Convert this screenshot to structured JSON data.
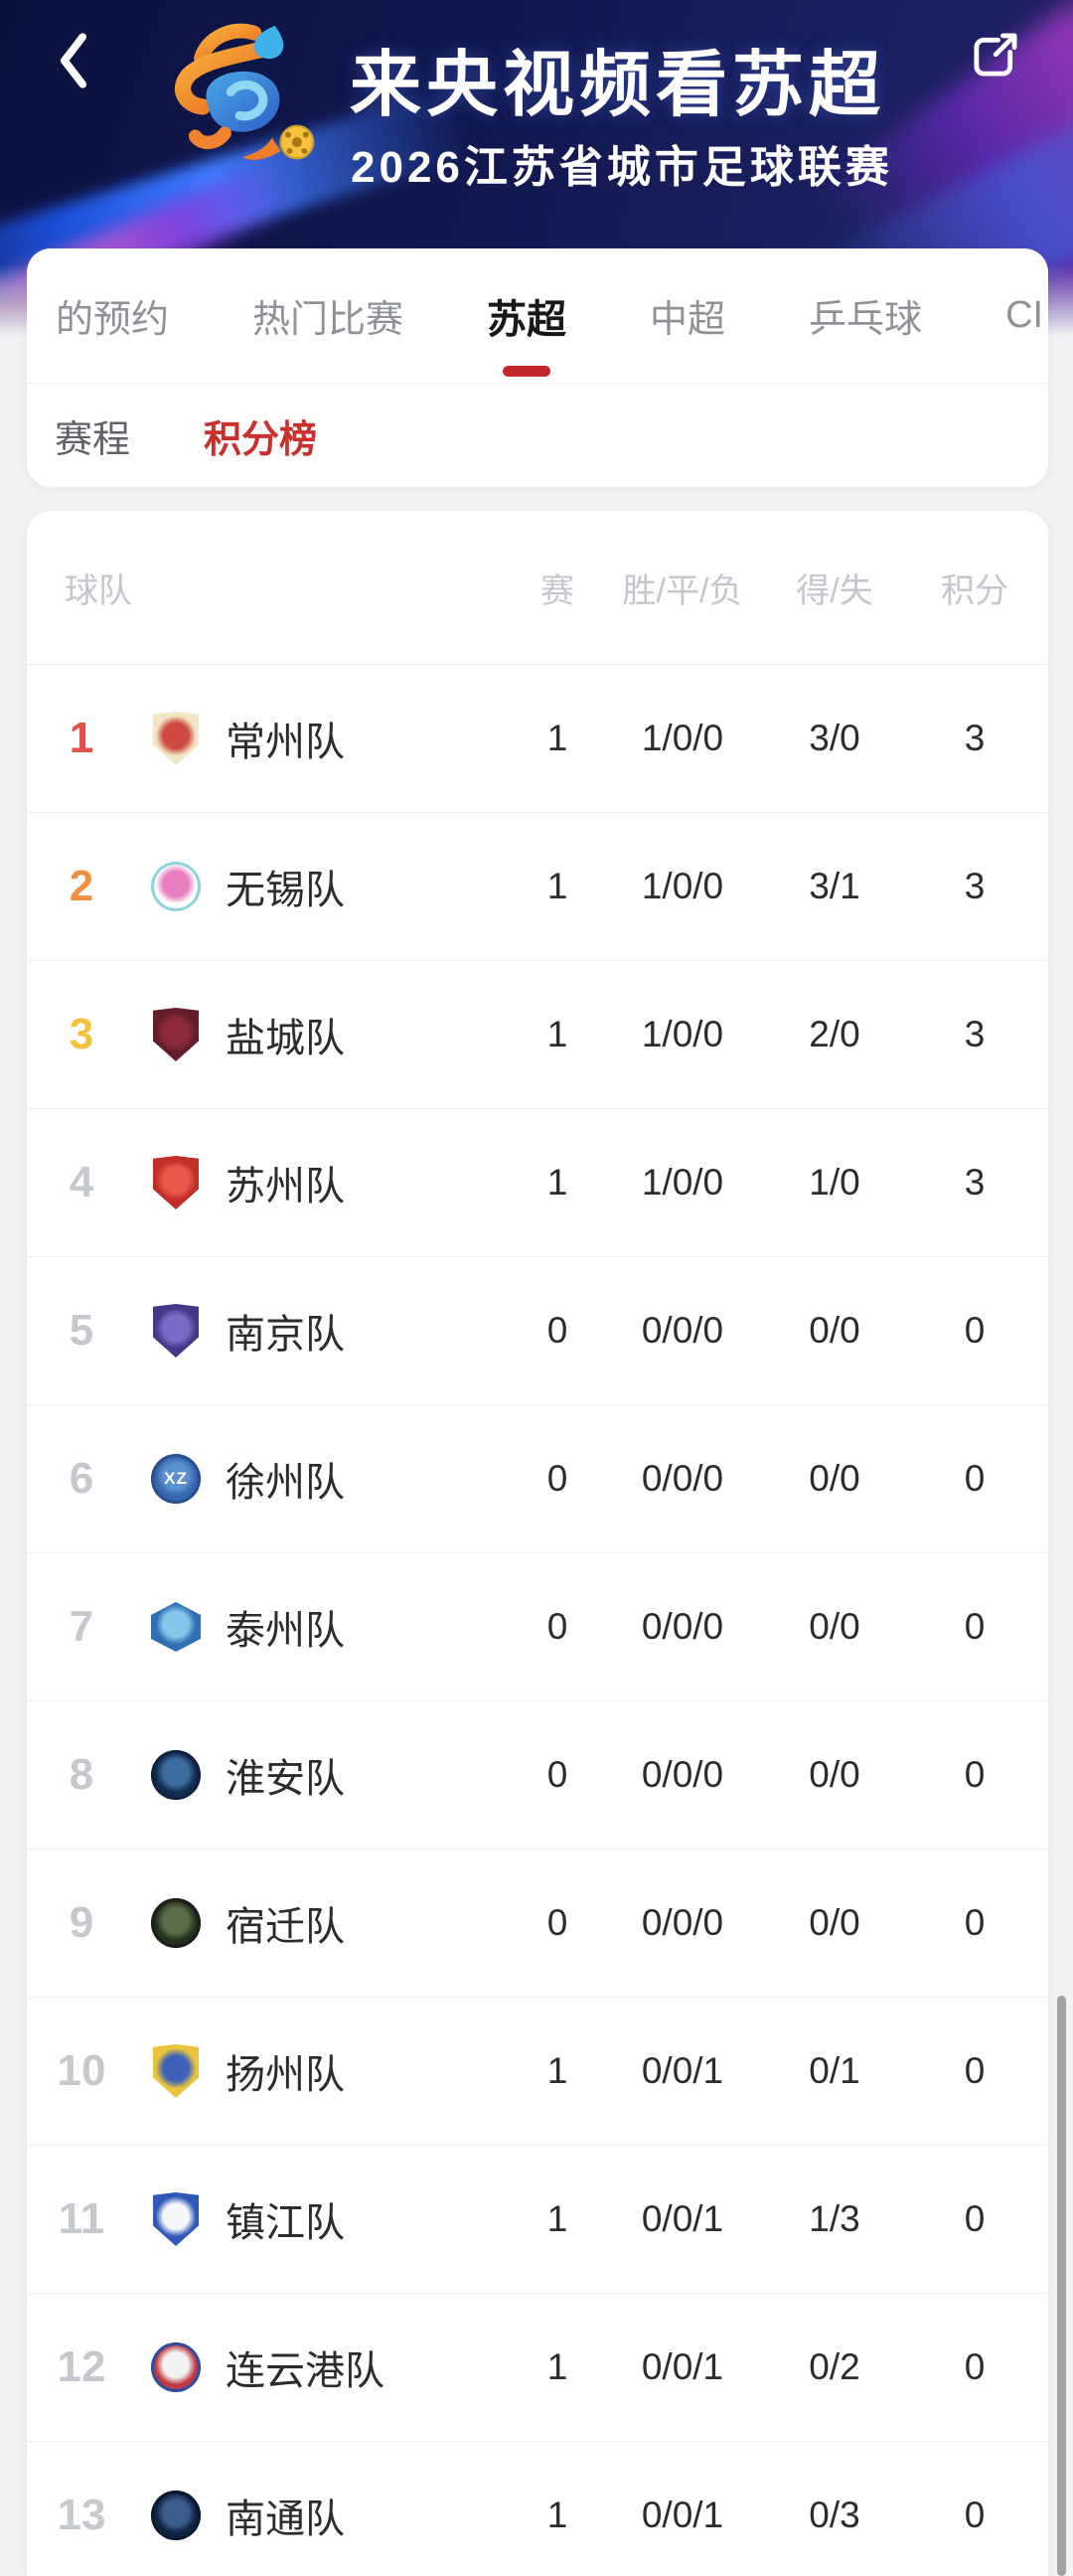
{
  "banner": {
    "title": "来央视频看苏超",
    "subtitle": "2026江苏省城市足球联赛",
    "back_icon": "chevron-left",
    "share_icon": "external-link",
    "accent_colors": {
      "orange": "#f29b38",
      "blue": "#3f7bff",
      "purple": "#b13ecf"
    }
  },
  "tabs": {
    "items": [
      {
        "label": "的预约",
        "active": false
      },
      {
        "label": "热门比赛",
        "active": false
      },
      {
        "label": "苏超",
        "active": true
      },
      {
        "label": "中超",
        "active": false
      },
      {
        "label": "乒乓球",
        "active": false
      },
      {
        "label": "CI",
        "active": false
      }
    ],
    "indicator_color": "#c5262e"
  },
  "subtabs": {
    "items": [
      {
        "label": "赛程",
        "active": false
      },
      {
        "label": "积分榜",
        "active": true
      }
    ],
    "active_color": "#c9302c"
  },
  "standings": {
    "columns": {
      "team": "球队",
      "played": "赛",
      "wdl": "胜/平/负",
      "goals": "得/失",
      "points": "积分"
    },
    "rows": [
      {
        "rank": 1,
        "rank_color": "#e5504a",
        "team": "常州队",
        "played": "1",
        "wdl": "1/0/0",
        "goals": "3/0",
        "points": "3",
        "badge": {
          "shape": "shield",
          "inner": "#cf4a42",
          "outer": "#f3e6c6"
        }
      },
      {
        "rank": 2,
        "rank_color": "#f0913f",
        "team": "无锡队",
        "played": "1",
        "wdl": "1/0/0",
        "goals": "3/1",
        "points": "3",
        "badge": {
          "shape": "circle",
          "inner": "#e87fc0",
          "outer": "#fdfdfd",
          "ring": "#8fd4da"
        }
      },
      {
        "rank": 3,
        "rank_color": "#f2c13e",
        "team": "盐城队",
        "played": "1",
        "wdl": "1/0/0",
        "goals": "2/0",
        "points": "3",
        "badge": {
          "shape": "shield",
          "inner": "#8d2b3c",
          "outer": "#611d29"
        }
      },
      {
        "rank": 4,
        "rank_color": "#c5c9cd",
        "team": "苏州队",
        "played": "1",
        "wdl": "1/0/0",
        "goals": "1/0",
        "points": "3",
        "badge": {
          "shape": "shield",
          "inner": "#e8584b",
          "outer": "#bf2f27"
        }
      },
      {
        "rank": 5,
        "rank_color": "#c5c9cd",
        "team": "南京队",
        "played": "0",
        "wdl": "0/0/0",
        "goals": "0/0",
        "points": "0",
        "badge": {
          "shape": "shield",
          "inner": "#7b6ac6",
          "outer": "#473787"
        }
      },
      {
        "rank": 6,
        "rank_color": "#c5c9cd",
        "team": "徐州队",
        "played": "0",
        "wdl": "0/0/0",
        "goals": "0/0",
        "points": "0",
        "badge": {
          "shape": "circle",
          "inner": "#5b90cf",
          "outer": "#3664ad",
          "ring": "#27508d",
          "label": "XZ"
        }
      },
      {
        "rank": 7,
        "rank_color": "#c5c9cd",
        "team": "泰州队",
        "played": "0",
        "wdl": "0/0/0",
        "goals": "0/0",
        "points": "0",
        "badge": {
          "shape": "hex",
          "inner": "#85c6ea",
          "outer": "#2f6fb2"
        }
      },
      {
        "rank": 8,
        "rank_color": "#c5c9cd",
        "team": "淮安队",
        "played": "0",
        "wdl": "0/0/0",
        "goals": "0/0",
        "points": "0",
        "badge": {
          "shape": "circle",
          "inner": "#3c6c9e",
          "outer": "#122c4e",
          "ring": "#0d2240"
        }
      },
      {
        "rank": 9,
        "rank_color": "#c5c9cd",
        "team": "宿迁队",
        "played": "0",
        "wdl": "0/0/0",
        "goals": "0/0",
        "points": "0",
        "badge": {
          "shape": "circle",
          "inner": "#5d6b4b",
          "outer": "#252f1e",
          "ring": "#181f13"
        }
      },
      {
        "rank": 10,
        "rank_color": "#c5c9cd",
        "team": "扬州队",
        "played": "1",
        "wdl": "0/0/1",
        "goals": "0/1",
        "points": "0",
        "badge": {
          "shape": "shield",
          "inner": "#3f62b8",
          "outer": "#e9c53d"
        }
      },
      {
        "rank": 11,
        "rank_color": "#c5c9cd",
        "team": "镇江队",
        "played": "1",
        "wdl": "0/0/1",
        "goals": "1/3",
        "points": "0",
        "badge": {
          "shape": "shield",
          "inner": "#f5f7fa",
          "outer": "#2f58b8"
        }
      },
      {
        "rank": 12,
        "rank_color": "#c5c9cd",
        "team": "连云港队",
        "played": "1",
        "wdl": "0/0/1",
        "goals": "0/2",
        "points": "0",
        "badge": {
          "shape": "circle",
          "inner": "#f2f2f2",
          "outer": "#bf3a44",
          "ring": "#2a4fa0"
        }
      },
      {
        "rank": 13,
        "rank_color": "#c5c9cd",
        "team": "南通队",
        "played": "1",
        "wdl": "0/0/1",
        "goals": "0/3",
        "points": "0",
        "badge": {
          "shape": "circle",
          "inner": "#3c5c8c",
          "outer": "#10233f",
          "ring": "#0a1830"
        }
      }
    ]
  }
}
